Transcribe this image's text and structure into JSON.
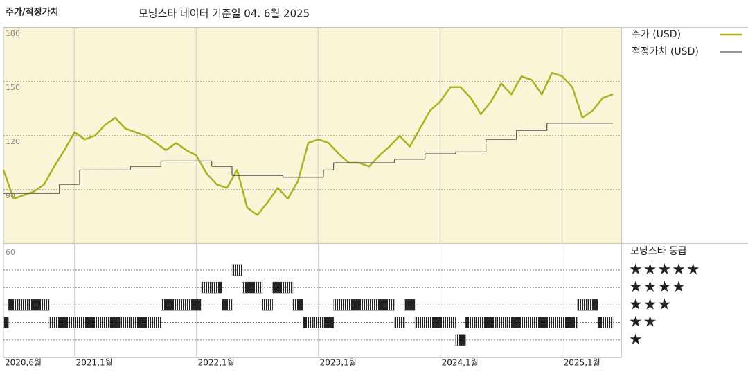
{
  "header": "주가/적정가치",
  "chart_data": [
    {
      "type": "line",
      "title": "모닝스타 데이터 기준일 04. 6월 2025",
      "x": [
        "2020-06",
        "2020-07",
        "2020-08",
        "2020-09",
        "2020-10",
        "2020-11",
        "2020-12",
        "2021-01",
        "2021-02",
        "2021-03",
        "2021-04",
        "2021-05",
        "2021-06",
        "2021-07",
        "2021-08",
        "2021-09",
        "2021-10",
        "2021-11",
        "2021-12",
        "2022-01",
        "2022-02",
        "2022-03",
        "2022-04",
        "2022-05",
        "2022-06",
        "2022-07",
        "2022-08",
        "2022-09",
        "2022-10",
        "2022-11",
        "2022-12",
        "2023-01",
        "2023-02",
        "2023-03",
        "2023-04",
        "2023-05",
        "2023-06",
        "2023-07",
        "2023-08",
        "2023-09",
        "2023-10",
        "2023-11",
        "2023-12",
        "2024-01",
        "2024-02",
        "2024-03",
        "2024-04",
        "2024-05",
        "2024-06",
        "2024-07",
        "2024-08",
        "2024-09",
        "2024-10",
        "2024-11",
        "2024-12",
        "2025-01",
        "2025-02",
        "2025-03",
        "2025-04",
        "2025-05",
        "2025-06"
      ],
      "series": [
        {
          "name": "주가 (USD)",
          "color": "#a9b122",
          "style": "line",
          "values": [
            101,
            85,
            87,
            89,
            93,
            103,
            112,
            122,
            118,
            120,
            126,
            130,
            124,
            122,
            120,
            116,
            112,
            116,
            112,
            109,
            99,
            93,
            91,
            101,
            80,
            76,
            83,
            91,
            85,
            95,
            116,
            118,
            116,
            110,
            105,
            105,
            103,
            109,
            114,
            120,
            114,
            124,
            134,
            139,
            147,
            147,
            141,
            132,
            139,
            149,
            143,
            153,
            151,
            143,
            155,
            153,
            147,
            130,
            134,
            141,
            143
          ]
        },
        {
          "name": "적정가치 (USD)",
          "color": "#555555",
          "style": "step",
          "values": [
            88,
            88,
            88,
            88,
            88,
            88,
            93,
            93,
            101,
            101,
            101,
            101,
            101,
            103,
            103,
            103,
            106,
            106,
            106,
            106,
            106,
            103,
            103,
            98,
            98,
            98,
            98,
            98,
            97,
            97,
            97,
            97,
            101,
            105,
            105,
            105,
            105,
            105,
            105,
            107,
            107,
            107,
            110,
            110,
            110,
            111,
            111,
            111,
            118,
            118,
            118,
            123,
            123,
            123,
            127,
            127,
            127,
            127,
            127,
            127,
            127
          ]
        }
      ],
      "ylim": [
        60,
        180
      ],
      "yticks": [
        90,
        120,
        150,
        180
      ],
      "grid": true,
      "xticks": [
        {
          "value": "2020-06",
          "label": "2020,6월"
        },
        {
          "value": "2021-01",
          "label": "2021,1월"
        },
        {
          "value": "2022-01",
          "label": "2022,1월"
        },
        {
          "value": "2023-01",
          "label": "2023,1월"
        },
        {
          "value": "2024-01",
          "label": "2024,1월"
        },
        {
          "value": "2025-01",
          "label": "2025,1월"
        }
      ],
      "background": "#f9f5d6"
    },
    {
      "type": "rating",
      "title": "모닝스타 등급",
      "corner_label": "60",
      "x": [
        "2020-06",
        "2020-07",
        "2020-08",
        "2020-09",
        "2020-10",
        "2020-11",
        "2020-12",
        "2021-01",
        "2021-02",
        "2021-03",
        "2021-04",
        "2021-05",
        "2021-06",
        "2021-07",
        "2021-08",
        "2021-09",
        "2021-10",
        "2021-11",
        "2021-12",
        "2022-01",
        "2022-02",
        "2022-03",
        "2022-04",
        "2022-05",
        "2022-06",
        "2022-07",
        "2022-08",
        "2022-09",
        "2022-10",
        "2022-11",
        "2022-12",
        "2023-01",
        "2023-02",
        "2023-03",
        "2023-04",
        "2023-05",
        "2023-06",
        "2023-07",
        "2023-08",
        "2023-09",
        "2023-10",
        "2023-11",
        "2023-12",
        "2024-01",
        "2024-02",
        "2024-03",
        "2024-04",
        "2024-05",
        "2024-06",
        "2024-07",
        "2024-08",
        "2024-09",
        "2024-10",
        "2024-11",
        "2024-12",
        "2025-01",
        "2025-02",
        "2025-03",
        "2025-04",
        "2025-05",
        "2025-06"
      ],
      "values": [
        2,
        3,
        3,
        3,
        3,
        2,
        2,
        2,
        2,
        2,
        2,
        2,
        2,
        2,
        2,
        2,
        3,
        3,
        3,
        3,
        4,
        4,
        3,
        5,
        4,
        4,
        3,
        4,
        4,
        3,
        2,
        2,
        2,
        3,
        3,
        3,
        3,
        3,
        3,
        2,
        3,
        2,
        2,
        2,
        2,
        1,
        2,
        2,
        2,
        2,
        2,
        2,
        2,
        2,
        2,
        2,
        2,
        3,
        3,
        2,
        2
      ],
      "color": "#222222",
      "ylim": [
        0,
        6.5
      ],
      "yticks": [
        {
          "value": 5,
          "label": "★★★★★"
        },
        {
          "value": 4,
          "label": "★★★★"
        },
        {
          "value": 3,
          "label": "★★★"
        },
        {
          "value": 2,
          "label": "★★"
        },
        {
          "value": 1,
          "label": "★"
        }
      ]
    }
  ]
}
